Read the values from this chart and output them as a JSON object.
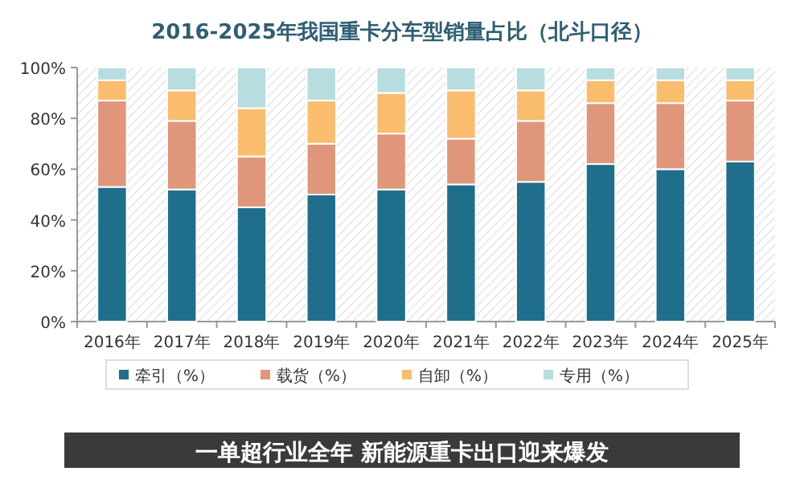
{
  "chart_data": {
    "type": "bar",
    "stacked": true,
    "title": "2016-2025年我国重卡分车型销量占比（北斗口径）",
    "categories": [
      "2016年",
      "2017年",
      "2018年",
      "2019年",
      "2020年",
      "2021年",
      "2022年",
      "2023年",
      "2024年",
      "2025年"
    ],
    "series": [
      {
        "name": "牵引（%）",
        "color": "#1f6e8c",
        "values": [
          53,
          52,
          45,
          50,
          52,
          54,
          55,
          62,
          60,
          63
        ]
      },
      {
        "name": "载货（%）",
        "color": "#e0967a",
        "values": [
          34,
          27,
          20,
          20,
          22,
          18,
          24,
          24,
          26,
          24
        ]
      },
      {
        "name": "自卸（%）",
        "color": "#f9bd6d",
        "values": [
          8,
          12,
          19,
          17,
          16,
          19,
          12,
          9,
          9,
          8
        ]
      },
      {
        "name": "专用（%）",
        "color": "#b7dde0",
        "values": [
          5,
          9,
          16,
          13,
          10,
          9,
          9,
          5,
          5,
          5
        ]
      }
    ],
    "ylim": [
      0,
      100
    ],
    "yticks": [
      {
        "value": 0,
        "label": "0%"
      },
      {
        "value": 20,
        "label": "20%"
      },
      {
        "value": 40,
        "label": "40%"
      },
      {
        "value": 60,
        "label": "60%"
      },
      {
        "value": 80,
        "label": "80%"
      },
      {
        "value": 100,
        "label": "100%"
      }
    ],
    "legend": "bottom",
    "annotations": [
      "一单超行业全年 新能源重卡出口迎来爆发"
    ]
  }
}
